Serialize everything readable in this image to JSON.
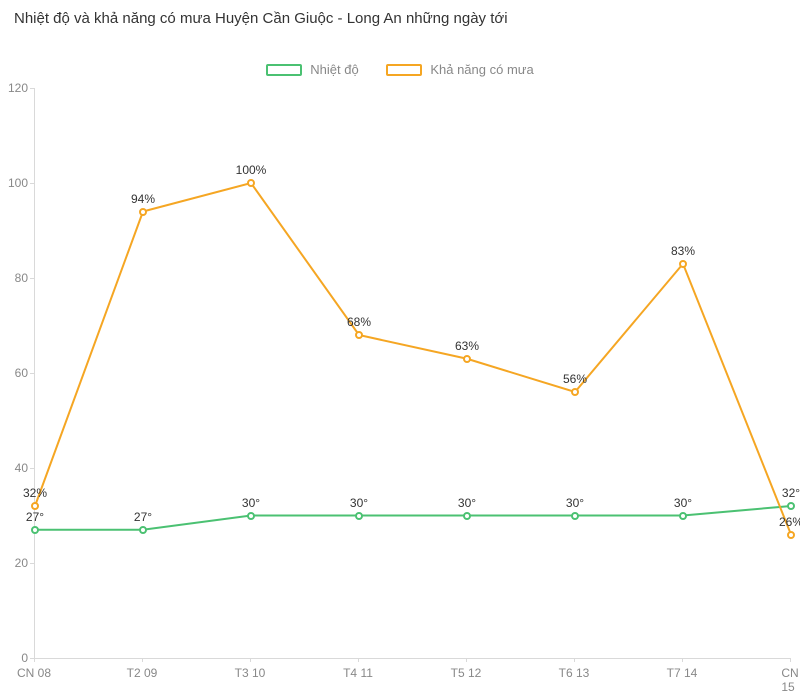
{
  "title": "Nhiệt độ và khả năng có mưa Huyện Cần Giuộc - Long An những ngày tới",
  "chart": {
    "type": "line",
    "background_color": "#ffffff",
    "axis_color": "#d9d9d9",
    "tick_label_color": "#888888",
    "tick_fontsize": 12,
    "data_label_color": "#333333",
    "data_label_fontsize": 12,
    "title_fontsize": 15,
    "line_width": 2,
    "marker_radius": 4,
    "ylim": [
      0,
      120
    ],
    "ytick_step": 20,
    "categories": [
      "CN 08",
      "T2 09",
      "T3 10",
      "T4 11",
      "T5 12",
      "T6 13",
      "T7 14",
      "CN 15"
    ],
    "series": [
      {
        "name": "Nhiệt độ",
        "color": "#4bc172",
        "values": [
          27,
          27,
          30,
          30,
          30,
          30,
          30,
          32
        ],
        "label_suffix": "°"
      },
      {
        "name": "Khả năng có mưa",
        "color": "#f5a623",
        "values": [
          32,
          94,
          100,
          68,
          63,
          56,
          83,
          26
        ],
        "label_suffix": "%"
      }
    ],
    "legend": {
      "position": "top-center",
      "fontsize": 13,
      "label_color": "#888888"
    }
  }
}
